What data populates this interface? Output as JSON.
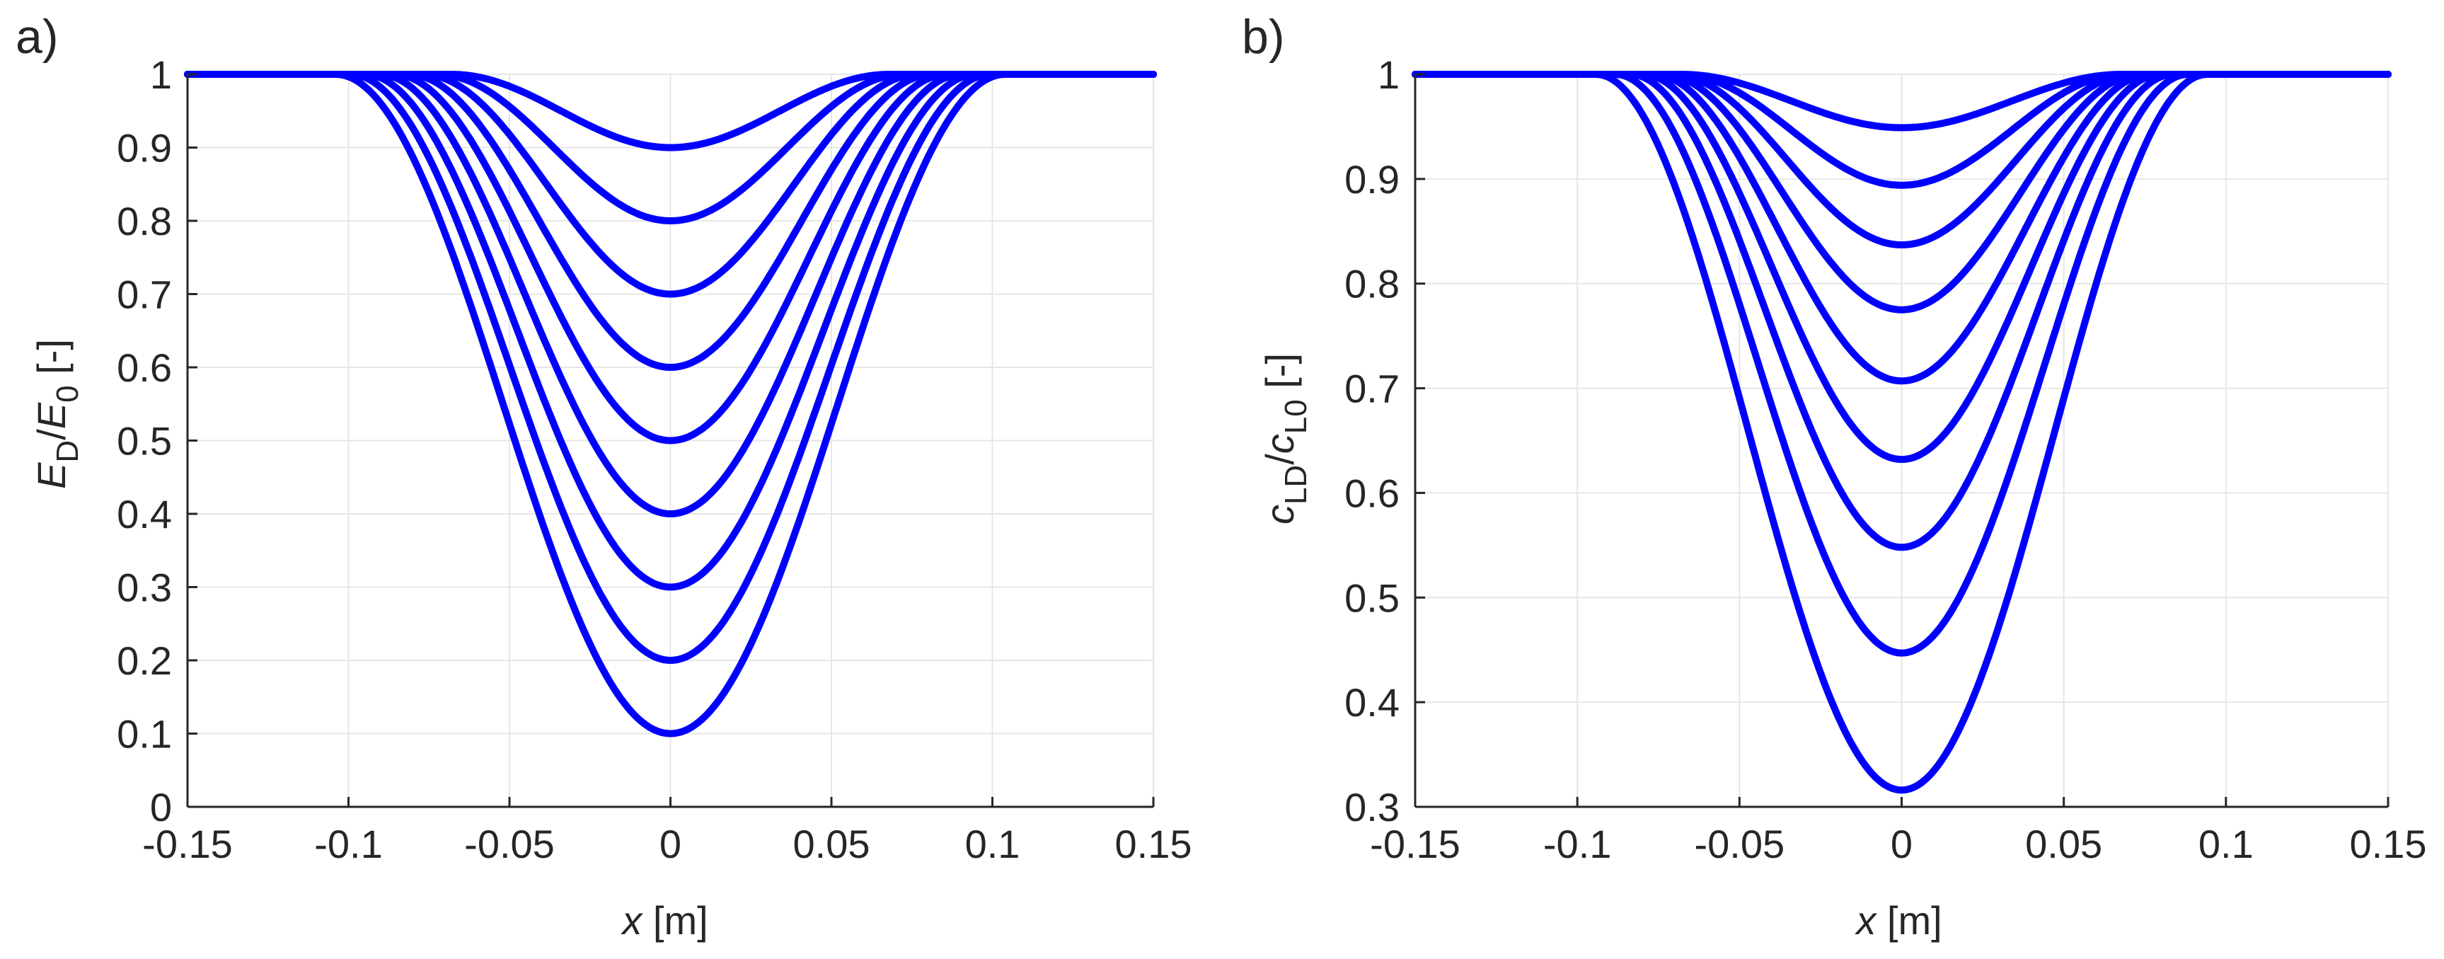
{
  "figure_title": "",
  "chart_data": [
    {
      "type": "line",
      "panel_label": "a)",
      "title": "",
      "xlabel": {
        "var": "x",
        "unit": " [m]"
      },
      "ylabel": {
        "base1": "E",
        "sub1": "D",
        "slash": "/",
        "base2": "E",
        "sub2": "0",
        "unit": " [-]"
      },
      "xlim": [
        -0.15,
        0.15
      ],
      "ylim": [
        0,
        1
      ],
      "grid": true,
      "legend": "none",
      "color": "#0000ff",
      "xticks": [
        -0.15,
        -0.1,
        -0.05,
        0,
        0.05,
        0.1,
        0.15
      ],
      "xtick_labels": [
        "-0.15",
        "-0.1",
        "-0.05",
        "0",
        "0.05",
        "0.1",
        "0.15"
      ],
      "yticks": [
        0,
        0.1,
        0.2,
        0.3,
        0.4,
        0.5,
        0.6,
        0.7,
        0.8,
        0.9,
        1
      ],
      "ytick_labels": [
        "0",
        "0.1",
        "0.2",
        "0.3",
        "0.4",
        "0.5",
        "0.6",
        "0.7",
        "0.8",
        "0.9",
        "1"
      ],
      "profile": {
        "plateau_value": 1,
        "half_width_at_min_0.9": 0.068,
        "half_width_at_min_0.1": 0.104
      },
      "series": [
        {
          "name": "min 0.9",
          "min_value": 0.9
        },
        {
          "name": "min 0.8",
          "min_value": 0.8
        },
        {
          "name": "min 0.7",
          "min_value": 0.7
        },
        {
          "name": "min 0.6",
          "min_value": 0.6
        },
        {
          "name": "min 0.5",
          "min_value": 0.5
        },
        {
          "name": "min 0.4",
          "min_value": 0.4
        },
        {
          "name": "min 0.3",
          "min_value": 0.3
        },
        {
          "name": "min 0.2",
          "min_value": 0.2
        },
        {
          "name": "min 0.1",
          "min_value": 0.1
        }
      ]
    },
    {
      "type": "line",
      "panel_label": "b)",
      "title": "",
      "xlabel": {
        "var": "x",
        "unit": " [m]"
      },
      "ylabel": {
        "base1": "c",
        "sub1": "LD",
        "slash": "/",
        "base2": "c",
        "sub2": "L0",
        "unit": " [-]"
      },
      "xlim": [
        -0.15,
        0.15
      ],
      "ylim": [
        0.3,
        1
      ],
      "grid": true,
      "legend": "none",
      "color": "#0000ff",
      "xticks": [
        -0.15,
        -0.1,
        -0.05,
        0,
        0.05,
        0.1,
        0.15
      ],
      "xtick_labels": [
        "-0.15",
        "-0.1",
        "-0.05",
        "0",
        "0.05",
        "0.1",
        "0.15"
      ],
      "yticks": [
        0.3,
        0.4,
        0.5,
        0.6,
        0.7,
        0.8,
        0.9,
        1
      ],
      "ytick_labels": [
        "0.3",
        "0.4",
        "0.5",
        "0.6",
        "0.7",
        "0.8",
        "0.9",
        "1"
      ],
      "profile": {
        "plateau_value": 1,
        "half_width_at_min_0.9": 0.068,
        "half_width_at_min_0.1": 0.104
      },
      "series": [
        {
          "name": "min 0.949",
          "min_value": 0.949
        },
        {
          "name": "min 0.894",
          "min_value": 0.894
        },
        {
          "name": "min 0.837",
          "min_value": 0.837
        },
        {
          "name": "min 0.775",
          "min_value": 0.775
        },
        {
          "name": "min 0.707",
          "min_value": 0.707
        },
        {
          "name": "min 0.632",
          "min_value": 0.632
        },
        {
          "name": "min 0.548",
          "min_value": 0.548
        },
        {
          "name": "min 0.447",
          "min_value": 0.447
        },
        {
          "name": "min 0.316",
          "min_value": 0.316
        }
      ]
    }
  ]
}
